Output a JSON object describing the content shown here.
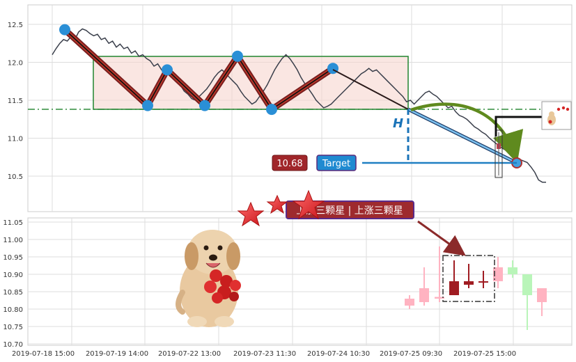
{
  "chart_data": [
    {
      "type": "line",
      "title": "",
      "xlabel": "",
      "ylabel": "",
      "y_ticks": [
        12.5,
        12.0,
        11.5,
        11.0,
        10.5
      ],
      "ylim": [
        10.0,
        12.75
      ],
      "grid": true,
      "series": [
        {
          "values": [
            12.1,
            12.18,
            12.25,
            12.3,
            12.28,
            12.34,
            12.3,
            12.4,
            12.44,
            12.42,
            12.38,
            12.35,
            12.37,
            12.3,
            12.32,
            12.25,
            12.28,
            12.2,
            12.24,
            12.18,
            12.2,
            12.12,
            12.15,
            12.08,
            12.1,
            12.05,
            12.02,
            11.95,
            11.98,
            11.9,
            11.85,
            11.88,
            11.8,
            11.75,
            11.7,
            11.62,
            11.58,
            11.52,
            11.5,
            11.55,
            11.6,
            11.65,
            11.72,
            11.8,
            11.86,
            11.9,
            11.86,
            11.8,
            11.75,
            11.7,
            11.62,
            11.55,
            11.5,
            11.45,
            11.48,
            11.55,
            11.62,
            11.7,
            11.8,
            11.9,
            11.98,
            12.05,
            12.1,
            12.05,
            11.98,
            11.9,
            11.8,
            11.72,
            11.65,
            11.58,
            11.5,
            11.45,
            11.4,
            11.42,
            11.45,
            11.5,
            11.55,
            11.6,
            11.65,
            11.7,
            11.75,
            11.8,
            11.85,
            11.88,
            11.92,
            11.88,
            11.9,
            11.85,
            11.8,
            11.75,
            11.7,
            11.65,
            11.6,
            11.55,
            11.48,
            11.5,
            11.45,
            11.5,
            11.55,
            11.6,
            11.62,
            11.58,
            11.55,
            11.5,
            11.45,
            11.4,
            11.42,
            11.35,
            11.3,
            11.28,
            11.25,
            11.2,
            11.15,
            11.12,
            11.08,
            11.05,
            11.0,
            10.96,
            10.92,
            10.88,
            10.85,
            10.82,
            10.78,
            10.75,
            10.72,
            10.7,
            10.68,
            10.62,
            10.55,
            10.45,
            10.42,
            10.42
          ],
          "x_start_index": 0
        }
      ],
      "x_tick_labels": [
        "2019-07-18 15:00",
        "2019-07-19 14:00",
        "2019-07-22 13:00",
        "2019-07-23 11:30",
        "2019-07-24 10:30",
        "2019-07-25 09:30",
        "2019-07-25 15:00"
      ],
      "pattern": {
        "box_top": 12.08,
        "box_bottom": 11.38,
        "support_line": 11.38,
        "pivots": [
          12.43,
          11.43,
          11.9,
          11.43,
          12.08,
          11.38,
          11.92
        ],
        "h_label": "H",
        "target_label": "Target",
        "target_value": "10.68",
        "projected_target": 10.68
      }
    },
    {
      "type": "bar",
      "subtype": "candlestick",
      "title": "",
      "y_ticks": [
        11.05,
        11.0,
        10.95,
        10.9,
        10.85,
        10.8,
        10.75,
        10.7
      ],
      "ylim": [
        10.695,
        11.065
      ],
      "grid": true,
      "candles": [
        {
          "open": 10.81,
          "close": 10.83,
          "high": 10.84,
          "low": 10.8,
          "color": "pink"
        },
        {
          "open": 10.82,
          "close": 10.86,
          "high": 10.92,
          "low": 10.81,
          "color": "pink"
        },
        {
          "open": 10.83,
          "close": 10.835,
          "high": 10.98,
          "low": 10.82,
          "color": "pink"
        },
        {
          "open": 10.84,
          "close": 10.88,
          "high": 10.94,
          "low": 10.84,
          "color": "darkred"
        },
        {
          "open": 10.87,
          "close": 10.88,
          "high": 10.93,
          "low": 10.86,
          "color": "darkred"
        },
        {
          "open": 10.88,
          "close": 10.88,
          "high": 10.91,
          "low": 10.86,
          "color": "darkred"
        },
        {
          "open": 10.88,
          "close": 10.92,
          "high": 10.95,
          "low": 10.86,
          "color": "pink"
        },
        {
          "open": 10.92,
          "close": 10.9,
          "high": 10.94,
          "low": 10.89,
          "color": "lightgreen"
        },
        {
          "open": 10.9,
          "close": 10.84,
          "high": 10.9,
          "low": 10.74,
          "color": "lightgreen"
        },
        {
          "open": 10.82,
          "close": 10.86,
          "high": 10.86,
          "low": 10.78,
          "color": "pink"
        }
      ],
      "annotation": "上涨三颗星 | 上涨三颗星"
    }
  ]
}
